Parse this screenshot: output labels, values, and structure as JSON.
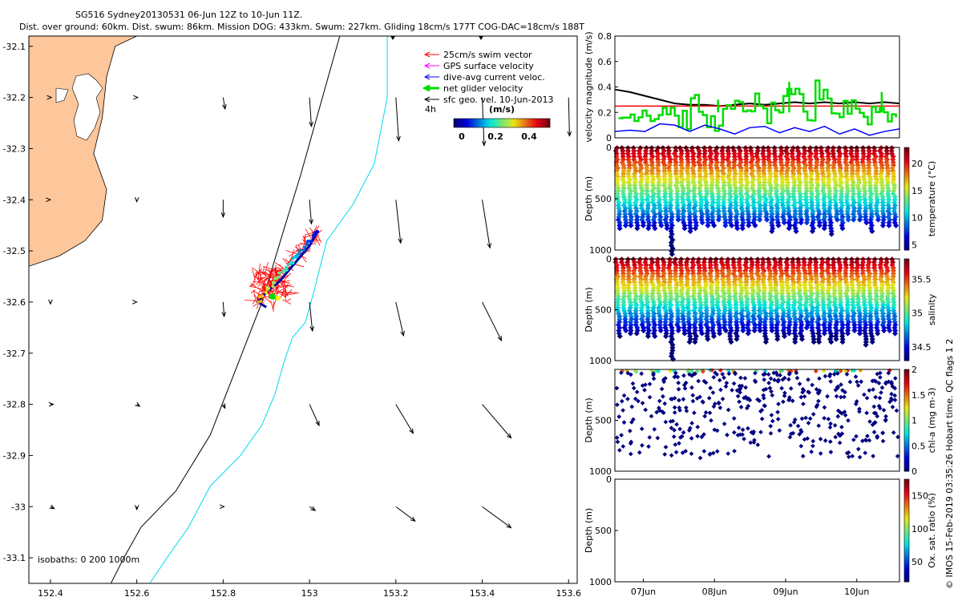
{
  "header": {
    "title_line1": "SG516 Sydney20130531 06-Jun 12Z to 10-Jun 11Z.",
    "title_line2": "Dist. over ground: 60km. Dist. swum: 86km. Mission DOG: 433km. Swum: 227km. Gliding 18cm/s 177T COG-DAC=18cm/s 188T"
  },
  "credit": "© IMOS 15-Feb-2019 03:35:26 Hobart time. QC flags 1  2",
  "colors": {
    "land": "#fdc79b",
    "swim_vector": "#ff0000",
    "gps_surface": "#ff00ff",
    "dive_avg": "#0000ff",
    "net_velocity": "#00dd00",
    "sfc_geo": "#000000",
    "isobath_200": "#000000",
    "isobath_1000": "#00d8f0"
  },
  "chart_data": [
    {
      "type": "scatter",
      "name": "map",
      "xlim": [
        152.35,
        153.62
      ],
      "ylim": [
        -33.15,
        -32.08
      ],
      "xticks": [
        "152.4",
        "152.6",
        "152.8",
        "153",
        "153.2",
        "153.4",
        "153.6"
      ],
      "yticks": [
        "-32.1",
        "-32.2",
        "-32.3",
        "-32.4",
        "-32.5",
        "-32.6",
        "-32.7",
        "-32.8",
        "-32.9",
        "-33",
        "-33.1"
      ],
      "legend": {
        "placement": "top-right",
        "entries": [
          "25cm/s swim vector",
          "GPS surface velocity",
          "dive-avg current veloc.",
          "net glider velocity",
          "sfc geo. vel. 10-Jun-2013"
        ],
        "time_label": "4h",
        "colorbar_label": "(m/s)",
        "colorbar_ticks": [
          "0",
          "0.2",
          "0.4"
        ]
      },
      "isobath_label": "isobaths: 0   200  1000m",
      "coastline": [
        [
          152.35,
          -32.53
        ],
        [
          152.42,
          -32.51
        ],
        [
          152.48,
          -32.48
        ],
        [
          152.52,
          -32.44
        ],
        [
          152.53,
          -32.38
        ],
        [
          152.5,
          -32.31
        ],
        [
          152.52,
          -32.24
        ],
        [
          152.53,
          -32.16
        ],
        [
          152.55,
          -32.1
        ],
        [
          152.6,
          -32.08
        ],
        [
          152.35,
          -32.08
        ]
      ],
      "isobath_200m": [
        [
          153.07,
          -32.08
        ],
        [
          153.03,
          -32.2
        ],
        [
          152.98,
          -32.35
        ],
        [
          152.94,
          -32.46
        ],
        [
          152.89,
          -32.6
        ],
        [
          152.83,
          -32.73
        ],
        [
          152.77,
          -32.86
        ],
        [
          152.69,
          -32.97
        ],
        [
          152.61,
          -33.04
        ],
        [
          152.57,
          -33.1
        ],
        [
          152.54,
          -33.15
        ]
      ],
      "isobath_1000m": [
        [
          153.18,
          -32.08
        ],
        [
          153.18,
          -32.2
        ],
        [
          153.15,
          -32.33
        ],
        [
          153.1,
          -32.41
        ],
        [
          153.04,
          -32.48
        ],
        [
          153.01,
          -32.58
        ],
        [
          152.99,
          -32.64
        ],
        [
          152.96,
          -32.67
        ],
        [
          152.94,
          -32.72
        ],
        [
          152.92,
          -32.78
        ],
        [
          152.89,
          -32.84
        ],
        [
          152.84,
          -32.9
        ],
        [
          152.77,
          -32.96
        ],
        [
          152.72,
          -33.04
        ],
        [
          152.67,
          -33.1
        ],
        [
          152.63,
          -33.15
        ]
      ],
      "glider_track": [
        [
          153.02,
          -32.46
        ],
        [
          153.0,
          -32.49
        ],
        [
          152.96,
          -32.53
        ],
        [
          152.93,
          -32.56
        ],
        [
          152.9,
          -32.58
        ],
        [
          152.88,
          -32.6
        ],
        [
          152.9,
          -32.61
        ]
      ],
      "geo_vectors": [
        {
          "lon": 152.4,
          "lat": -32.2,
          "u": 0.01,
          "v": 0.0
        },
        {
          "lon": 152.6,
          "lat": -32.2,
          "u": 0.01,
          "v": 0.0
        },
        {
          "lon": 152.8,
          "lat": -32.2,
          "u": 0.02,
          "v": -0.12
        },
        {
          "lon": 153.0,
          "lat": -32.2,
          "u": 0.02,
          "v": -0.3
        },
        {
          "lon": 153.2,
          "lat": -32.2,
          "u": 0.03,
          "v": -0.45
        },
        {
          "lon": 153.4,
          "lat": -32.2,
          "u": 0.02,
          "v": -0.5
        },
        {
          "lon": 153.6,
          "lat": -32.2,
          "u": 0.01,
          "v": -0.4
        },
        {
          "lon": 152.4,
          "lat": -32.4,
          "u": 0.0,
          "v": 0.0
        },
        {
          "lon": 152.6,
          "lat": -32.4,
          "u": 0.0,
          "v": -0.02
        },
        {
          "lon": 152.8,
          "lat": -32.4,
          "u": 0.0,
          "v": -0.18
        },
        {
          "lon": 153.0,
          "lat": -32.4,
          "u": 0.02,
          "v": -0.25
        },
        {
          "lon": 153.2,
          "lat": -32.4,
          "u": 0.05,
          "v": -0.45
        },
        {
          "lon": 153.4,
          "lat": -32.4,
          "u": 0.08,
          "v": -0.5
        },
        {
          "lon": 152.4,
          "lat": -32.6,
          "u": 0.0,
          "v": -0.02
        },
        {
          "lon": 152.6,
          "lat": -32.6,
          "u": 0.0,
          "v": 0.0
        },
        {
          "lon": 152.8,
          "lat": -32.6,
          "u": 0.01,
          "v": -0.15
        },
        {
          "lon": 153.0,
          "lat": -32.6,
          "u": 0.03,
          "v": -0.3
        },
        {
          "lon": 153.2,
          "lat": -32.6,
          "u": 0.08,
          "v": -0.35
        },
        {
          "lon": 153.4,
          "lat": -32.6,
          "u": 0.2,
          "v": -0.4
        },
        {
          "lon": 152.4,
          "lat": -32.8,
          "u": 0.03,
          "v": 0.0
        },
        {
          "lon": 152.6,
          "lat": -32.8,
          "u": 0.03,
          "v": -0.02
        },
        {
          "lon": 152.8,
          "lat": -32.8,
          "u": 0.02,
          "v": -0.04
        },
        {
          "lon": 153.0,
          "lat": -32.8,
          "u": 0.1,
          "v": -0.22
        },
        {
          "lon": 153.2,
          "lat": -32.8,
          "u": 0.18,
          "v": -0.3
        },
        {
          "lon": 153.4,
          "lat": -32.8,
          "u": 0.3,
          "v": -0.35
        },
        {
          "lon": 152.4,
          "lat": -33.0,
          "u": 0.04,
          "v": -0.02
        },
        {
          "lon": 152.6,
          "lat": -33.0,
          "u": 0.0,
          "v": -0.03
        },
        {
          "lon": 152.8,
          "lat": -33.0,
          "u": 0.01,
          "v": 0.0
        },
        {
          "lon": 153.0,
          "lat": -33.0,
          "u": 0.06,
          "v": -0.04
        },
        {
          "lon": 153.2,
          "lat": -33.0,
          "u": 0.2,
          "v": -0.15
        },
        {
          "lon": 153.4,
          "lat": -33.0,
          "u": 0.3,
          "v": -0.22
        }
      ]
    },
    {
      "type": "line",
      "name": "velocity",
      "ylabel": "velocity magnitude (m/s)",
      "ylim": [
        0,
        0.8
      ],
      "yticks": [
        "0",
        "0.2",
        "0.4",
        "0.6",
        "0.8"
      ],
      "x_range_days": [
        6.6,
        10.6
      ],
      "series": [
        {
          "color": "#000000",
          "values": [
            0.38,
            0.36,
            0.33,
            0.3,
            0.27,
            0.26,
            0.26,
            0.25,
            0.26,
            0.27,
            0.26,
            0.27,
            0.28,
            0.27,
            0.28,
            0.27,
            0.28,
            0.27,
            0.28,
            0.27
          ]
        },
        {
          "color": "#ff0000",
          "values": [
            0.25,
            0.25,
            0.25,
            0.25,
            0.25,
            0.25,
            0.25,
            0.25,
            0.25,
            0.25,
            0.25,
            0.25,
            0.25,
            0.25,
            0.25,
            0.25,
            0.25,
            0.25,
            0.25,
            0.25
          ]
        },
        {
          "color": "#00dd00",
          "values": [
            0.17,
            0.22,
            0.2,
            0.24,
            0.15,
            0.25,
            0.12,
            0.18,
            0.22,
            0.27,
            0.19,
            0.24,
            0.3,
            0.17,
            0.37,
            0.2,
            0.26,
            0.18,
            0.22,
            0.2
          ]
        },
        {
          "color": "#0000ff",
          "values": [
            0.05,
            0.06,
            0.05,
            0.11,
            0.1,
            0.05,
            0.1,
            0.07,
            0.03,
            0.08,
            0.09,
            0.04,
            0.08,
            0.05,
            0.09,
            0.03,
            0.07,
            0.02,
            0.05,
            0.07
          ]
        }
      ]
    },
    {
      "type": "scatter",
      "name": "temperature",
      "ylabel": "Depth (m)",
      "colorbar_label": "temperature (°C)",
      "colorbar_ticks": [
        "5",
        "10",
        "15",
        "20"
      ],
      "ylim": [
        1000,
        0
      ],
      "yticks": [
        "0",
        "500",
        "1000"
      ],
      "clim": [
        4,
        23
      ]
    },
    {
      "type": "scatter",
      "name": "salinity",
      "ylabel": "Depth (m)",
      "colorbar_label": "salinity",
      "colorbar_ticks": [
        "34.5",
        "35",
        "35.5"
      ],
      "ylim": [
        1000,
        0
      ],
      "yticks": [
        "0",
        "500",
        "1000"
      ],
      "clim": [
        34.3,
        35.8
      ]
    },
    {
      "type": "scatter",
      "name": "chla",
      "ylabel": "Depth (m)",
      "colorbar_label": "chl-a (mg m-3)",
      "colorbar_ticks": [
        "0",
        "0.5",
        "1",
        "1.5",
        "2"
      ],
      "ylim": [
        1000,
        0
      ],
      "yticks": [
        "500",
        "1000"
      ],
      "clim": [
        0,
        2
      ]
    },
    {
      "type": "scatter",
      "name": "oxygen",
      "ylabel": "Depth (m)",
      "colorbar_label": "Ox. sat. ratio (%)",
      "colorbar_ticks": [
        "50",
        "100",
        "150"
      ],
      "ylim": [
        1000,
        0
      ],
      "yticks": [
        "0",
        "500",
        "1000"
      ],
      "clim": [
        20,
        175
      ],
      "xticks": [
        "07Jun",
        "08Jun",
        "09Jun",
        "10Jun"
      ]
    }
  ]
}
